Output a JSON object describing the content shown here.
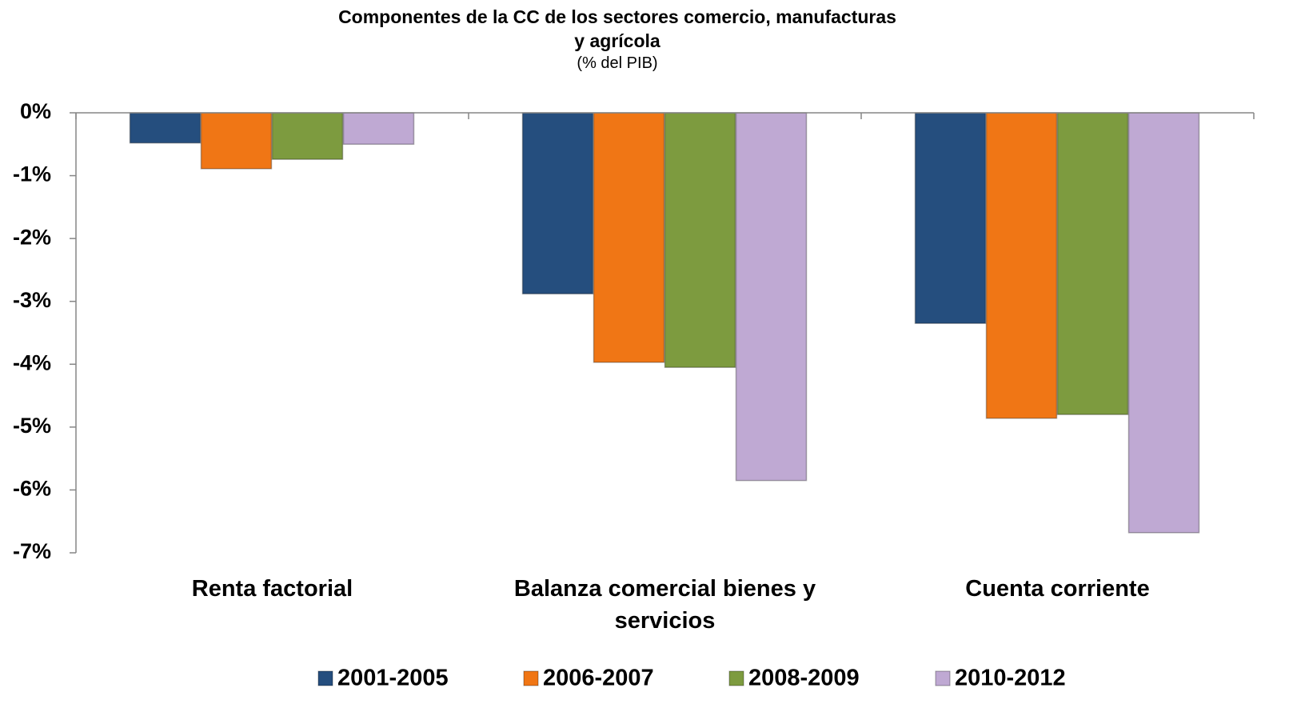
{
  "chart_data": {
    "type": "bar",
    "title": "Componentes de la CC de los sectores comercio, manufacturas y agrícola",
    "subtitle": "(% del PIB)",
    "categories": [
      "Renta factorial",
      "Balanza comercial bienes y servicios",
      "Cuenta corriente"
    ],
    "series": [
      {
        "name": "2001-2005",
        "color": "#254e7e",
        "values": [
          -0.48,
          -2.88,
          -3.35
        ]
      },
      {
        "name": "2006-2007",
        "color": "#f07615",
        "values": [
          -0.89,
          -3.97,
          -4.86
        ]
      },
      {
        "name": "2008-2009",
        "color": "#7d9b3f",
        "values": [
          -0.74,
          -4.05,
          -4.8
        ]
      },
      {
        "name": "2010-2012",
        "color": "#bfa9d3",
        "values": [
          -0.5,
          -5.85,
          -6.68
        ]
      }
    ],
    "ylim": [
      -7,
      0
    ],
    "yticks": [
      {
        "value": 0,
        "label": "0%"
      },
      {
        "value": -1,
        "label": "-1%"
      },
      {
        "value": -2,
        "label": "-2%"
      },
      {
        "value": -3,
        "label": "-3%"
      },
      {
        "value": -4,
        "label": "-4%"
      },
      {
        "value": -5,
        "label": "-5%"
      },
      {
        "value": -6,
        "label": "-6%"
      },
      {
        "value": -7,
        "label": "-7%"
      }
    ],
    "legend": "bottom"
  }
}
